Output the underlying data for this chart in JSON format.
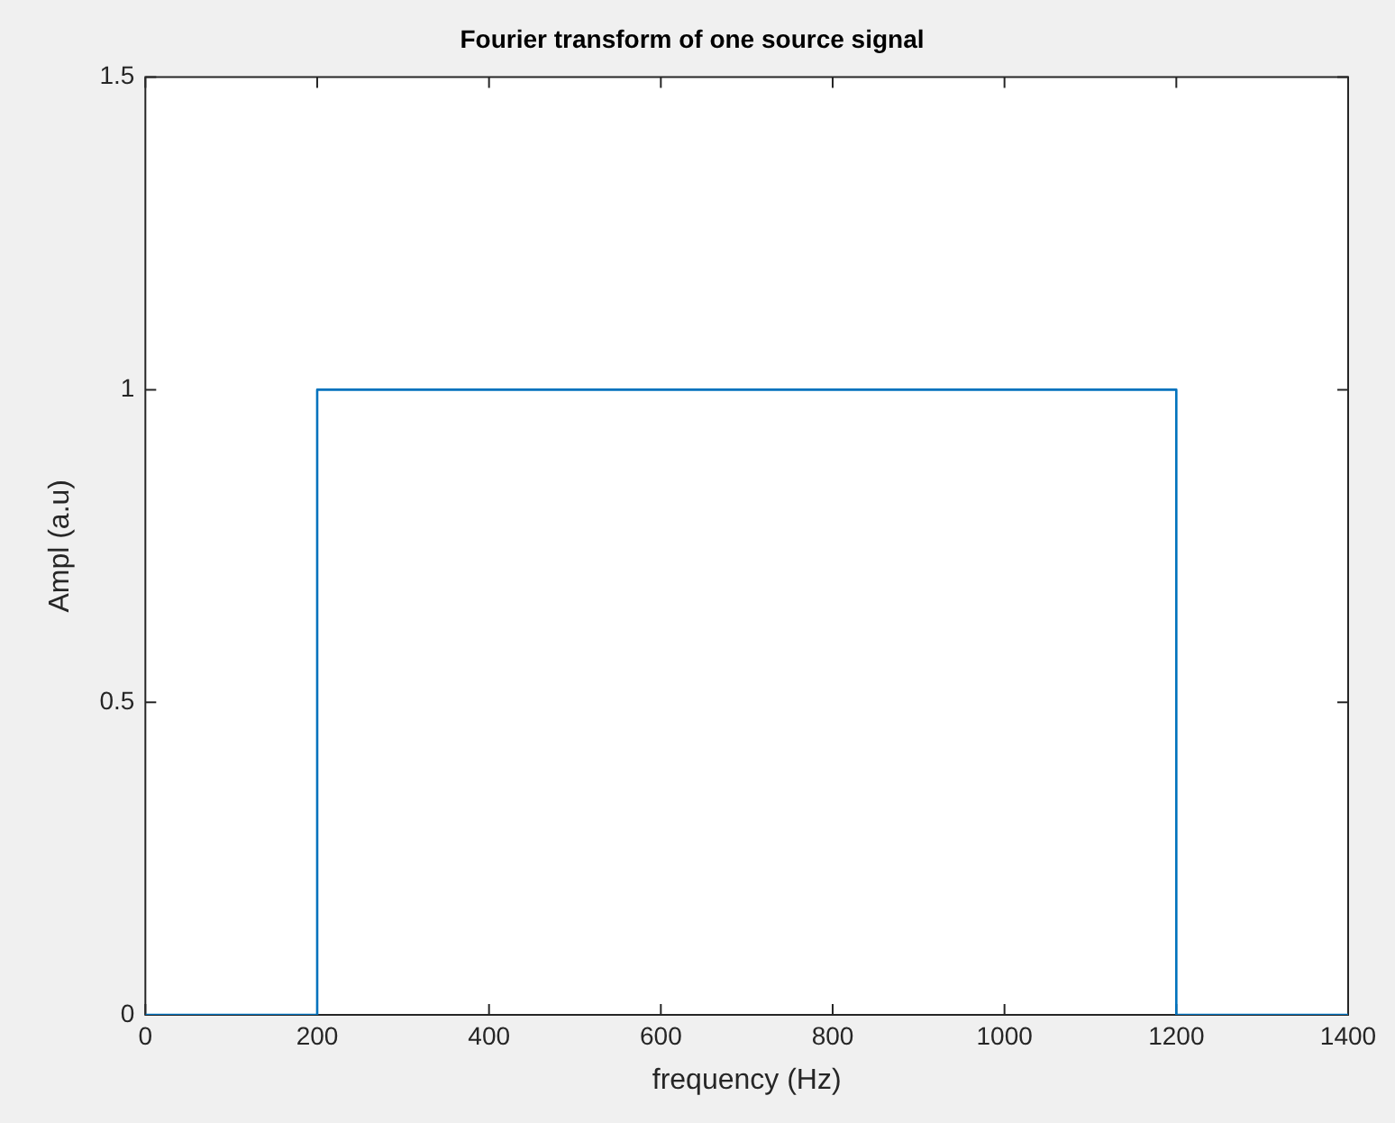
{
  "chart_data": {
    "type": "line",
    "title": "Fourier transform of one source signal",
    "xlabel": "frequency (Hz)",
    "ylabel": "Ampl (a.u)",
    "x": [
      0,
      200,
      200,
      1200,
      1200,
      1400
    ],
    "series": [
      {
        "color": "#0072bd",
        "values": [
          0,
          0,
          1,
          1,
          0,
          0
        ]
      }
    ],
    "xlim": [
      0,
      1400
    ],
    "xticks": [
      0,
      200,
      400,
      600,
      800,
      1000,
      1200,
      1400
    ],
    "ylim": [
      0,
      1.5
    ],
    "yticks": [
      0,
      0.5,
      1,
      1.5
    ],
    "grid": false,
    "legend": false,
    "marker": "none",
    "line_style": "solid"
  }
}
